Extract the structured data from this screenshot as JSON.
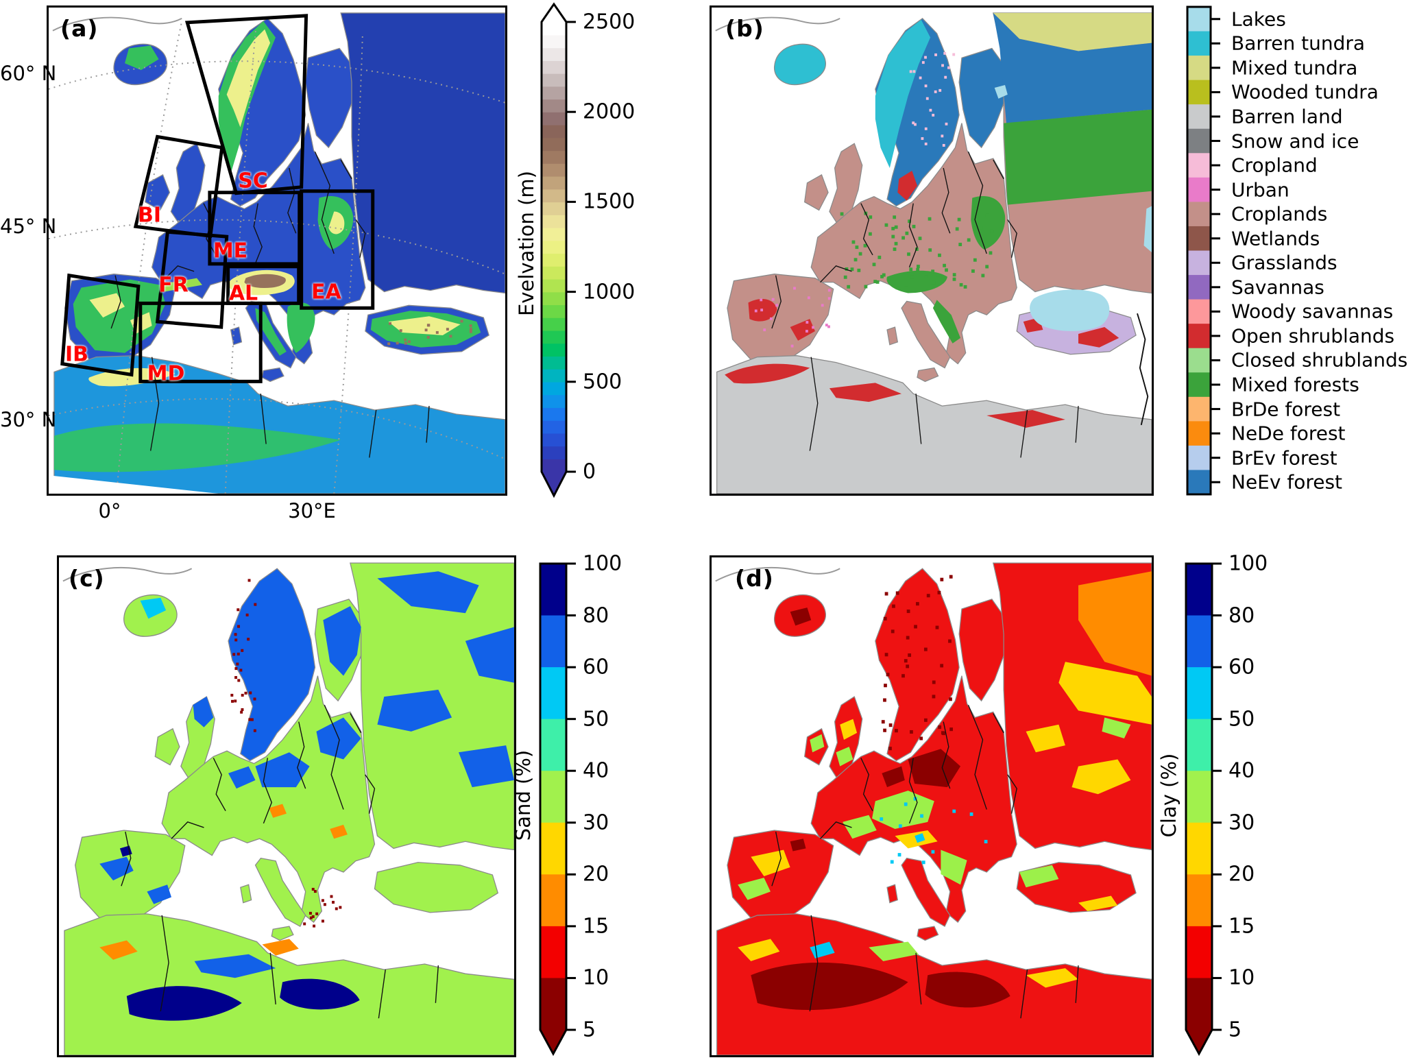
{
  "figure": {
    "background": "#ffffff",
    "description": "Four-panel map figure of Europe: elevation, land cover, sand and clay fraction",
    "region_label_color": "#ff0000"
  },
  "panel_a": {
    "tag": "(a)",
    "lat_labels": [
      "60° N",
      "45° N",
      "30° N"
    ],
    "lon_labels": [
      "0°",
      "30°E"
    ],
    "region_labels": [
      "SC",
      "BI",
      "ME",
      "FR",
      "AL",
      "EA",
      "IB",
      "MD"
    ],
    "colorbar": {
      "title": "Evelvation (m)",
      "tick_labels": [
        "2500",
        "2000",
        "1500",
        "1000",
        "500",
        "0"
      ],
      "arrow_top": true,
      "arrow_bottom": true,
      "colors_bottom_to_top": [
        "#3a35a8",
        "#2b40be",
        "#2750d4",
        "#2263e4",
        "#1a78ee",
        "#0f92ea",
        "#00a7e0",
        "#00b4c0",
        "#00bc92",
        "#00c264",
        "#1fc854",
        "#46d04a",
        "#6cd846",
        "#90de48",
        "#b0e450",
        "#cbe95c",
        "#dfee6e",
        "#ecf184",
        "#f1ef97",
        "#ece29a",
        "#e0cf94",
        "#d2b989",
        "#c1a37b",
        "#b08d6e",
        "#9f7a62",
        "#916c5a",
        "#8a655a",
        "#907070",
        "#a28987",
        "#b5a3a2",
        "#c8bcbb",
        "#dcd3d3",
        "#ece7e7",
        "#f8f6f6",
        "#ffffff"
      ]
    },
    "map_colors": {
      "sea": "#ffffff",
      "land_low": "#2a50c8",
      "land_low2": "#2340b0",
      "africa_low": "#1e96dc",
      "green": "#35c05c",
      "green2": "#2fbf6f",
      "yellow_green": "#9ade4e",
      "yellow": "#edf08c",
      "tan": "#c9ae84",
      "brown": "#96725c",
      "coast": "#8a8a8a",
      "border": "#111111",
      "graticule": "#9a9a9a",
      "box": "#000000"
    }
  },
  "panel_b": {
    "tag": "(b)",
    "legend": [
      {
        "label": "Lakes",
        "color": "#a7dcea"
      },
      {
        "label": "Barren tundra",
        "color": "#2ebfd2"
      },
      {
        "label": "Mixed tundra",
        "color": "#d6da84"
      },
      {
        "label": "Wooded tundra",
        "color": "#b9bf1e"
      },
      {
        "label": "Barren land",
        "color": "#c9cbcc"
      },
      {
        "label": "Snow and ice",
        "color": "#7d8083"
      },
      {
        "label": "Cropland",
        "color": "#f6bcd8"
      },
      {
        "label": "Urban",
        "color": "#e97bc9"
      },
      {
        "label": "Croplands",
        "color": "#c39089"
      },
      {
        "label": "Wetlands",
        "color": "#8e564a"
      },
      {
        "label": "Grasslands",
        "color": "#c7b2df"
      },
      {
        "label": "Savannas",
        "color": "#9169c0"
      },
      {
        "label": "Woody savannas",
        "color": "#fd989b"
      },
      {
        "label": "Open shrublands",
        "color": "#d22c2f"
      },
      {
        "label": "Closed shrublands",
        "color": "#9bdd8e"
      },
      {
        "label": "Mixed forests",
        "color": "#3ba33b"
      },
      {
        "label": "BrDe forest",
        "color": "#fdb56e"
      },
      {
        "label": "NeDe forest",
        "color": "#fb8b0e"
      },
      {
        "label": "BrEv forest",
        "color": "#b6cded"
      },
      {
        "label": "NeEv forest",
        "color": "#2a79ba"
      }
    ],
    "map_colors": {
      "sea": "#ffffff",
      "coast": "#8a8a8a",
      "border": "#111111"
    }
  },
  "panel_c": {
    "tag": "(c)",
    "colorbar": {
      "title": "Sand (%)",
      "tick_labels": [
        "100",
        "80",
        "60",
        "50",
        "40",
        "30",
        "20",
        "15",
        "10",
        "5"
      ],
      "arrow_bottom": true,
      "segment_colors_top_to_bottom": [
        "#00008b",
        "#1261e8",
        "#00c9f4",
        "#3eefa9",
        "#a1f14d",
        "#ffd700",
        "#ff8c00",
        "#f30000",
        "#8b0000"
      ]
    },
    "map_colors": {
      "sea": "#ffffff",
      "base": "#a1f14d",
      "blue": "#1261e8",
      "navy": "#00008b",
      "cyan": "#00c9f4",
      "orange": "#ff8c00",
      "dark_red": "#8b0000",
      "coast": "#8a8a8a",
      "border": "#111111"
    }
  },
  "panel_d": {
    "tag": "(d)",
    "colorbar": {
      "title": "Clay (%)",
      "tick_labels": [
        "100",
        "80",
        "60",
        "50",
        "40",
        "30",
        "20",
        "15",
        "10",
        "5"
      ],
      "arrow_bottom": true,
      "segment_colors_top_to_bottom": [
        "#00008b",
        "#1261e8",
        "#00c9f4",
        "#3eefa9",
        "#a1f14d",
        "#ffd700",
        "#ff8c00",
        "#f30000",
        "#8b0000"
      ]
    },
    "map_colors": {
      "sea": "#ffffff",
      "base": "#ee1212",
      "dark_red": "#8b0000",
      "orange": "#ff8c00",
      "yellow": "#ffd700",
      "green": "#9cf04a",
      "cyan": "#00c9f4",
      "coast": "#8a8a8a",
      "border": "#111111"
    }
  }
}
